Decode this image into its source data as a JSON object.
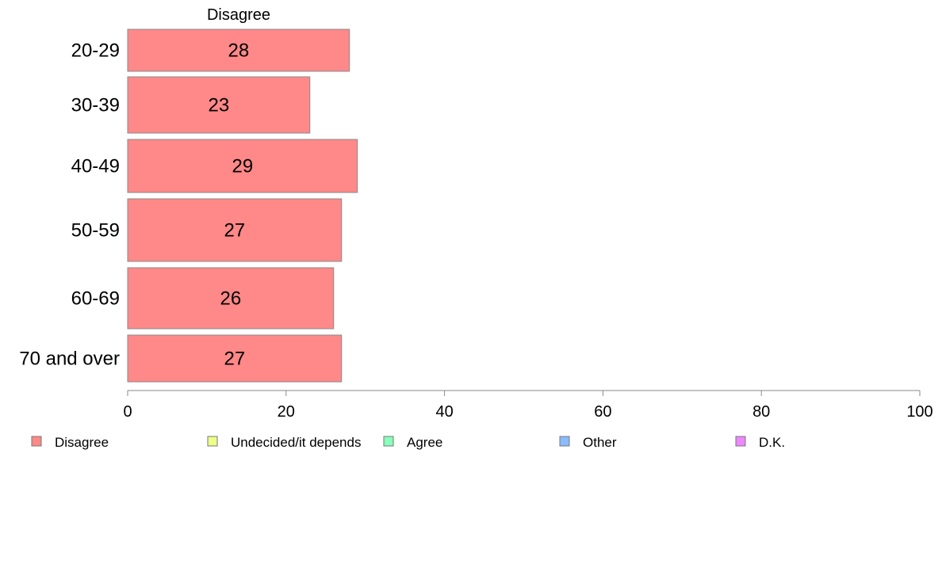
{
  "chart_data": {
    "type": "bar",
    "orientation": "horizontal",
    "stacked": true,
    "categories": [
      "20-29",
      "30-39",
      "40-49",
      "50-59",
      "60-69",
      "70 and over"
    ],
    "series": [
      {
        "name": "Disagree",
        "values": [
          28,
          23,
          29,
          27,
          26,
          27
        ],
        "color": "#ff8888"
      }
    ],
    "series_title": "Disagree",
    "xlim": [
      0,
      100
    ],
    "xticks": [
      0,
      20,
      40,
      60,
      80,
      100
    ],
    "grid": false,
    "legend": {
      "placement": "bottom",
      "entries": [
        {
          "label": "Disagree",
          "color": "#ff8888"
        },
        {
          "label": "Undecided/it depends",
          "color": "#eeff88"
        },
        {
          "label": "Agree",
          "color": "#88ffbb"
        },
        {
          "label": "Other",
          "color": "#88bbff"
        },
        {
          "label": "D.K.",
          "color": "#ee88ff"
        }
      ]
    }
  }
}
